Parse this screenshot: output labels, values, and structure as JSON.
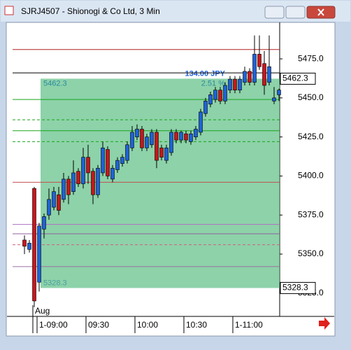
{
  "chart_data": {
    "type": "candlestick",
    "window_title": "SJRJ4507 - Shionogi & Co Ltd, 3 Min",
    "categories": [
      null,
      null,
      null,
      "1-09:00",
      null,
      null,
      null,
      null,
      null,
      null,
      null,
      null,
      null,
      "09:30",
      null,
      null,
      null,
      null,
      null,
      null,
      null,
      null,
      null,
      "10:00",
      null,
      null,
      null,
      null,
      null,
      null,
      null,
      null,
      null,
      "10:30",
      null,
      null,
      null,
      null,
      null,
      null,
      null,
      null,
      null,
      "1-11:00",
      null,
      null,
      null,
      null,
      null,
      null,
      null,
      null,
      null
    ],
    "x_sublabel": "Aug",
    "open": [
      5359,
      5353,
      5392,
      5332,
      5366,
      5375,
      5380,
      5388,
      5385,
      5398,
      5390,
      5403,
      5395,
      5412,
      5403,
      5388,
      5402,
      5417,
      5398,
      5404,
      5408,
      5410,
      5418,
      5425,
      5430,
      5418,
      5420,
      5428,
      5418,
      5410,
      5415,
      5428,
      5423,
      5427,
      5422,
      5425,
      5428,
      5440,
      5446,
      5449,
      5455,
      5448,
      5455,
      5462,
      5455,
      5460,
      5467,
      5460,
      5478,
      5472,
      5460,
      5448,
      5452
    ],
    "high": [
      5362,
      5359,
      5393,
      5370,
      5376,
      5392,
      5393,
      5393,
      5402,
      5400,
      5410,
      5405,
      5418,
      5420,
      5405,
      5407,
      5422,
      5419,
      5407,
      5412,
      5414,
      5422,
      5432,
      5433,
      5432,
      5427,
      5430,
      5430,
      5420,
      5420,
      5430,
      5430,
      5429,
      5429,
      5429,
      5432,
      5443,
      5450,
      5454,
      5457,
      5457,
      5460,
      5464,
      5464,
      5464,
      5470,
      5469,
      5490,
      5490,
      5480,
      5490,
      5457,
      5456
    ],
    "low": [
      5350,
      5351,
      5316,
      5326,
      5360,
      5372,
      5378,
      5375,
      5383,
      5382,
      5388,
      5393,
      5392,
      5395,
      5382,
      5386,
      5400,
      5398,
      5396,
      5402,
      5406,
      5408,
      5416,
      5423,
      5416,
      5416,
      5418,
      5405,
      5410,
      5408,
      5413,
      5421,
      5421,
      5421,
      5420,
      5423,
      5426,
      5438,
      5444,
      5447,
      5446,
      5446,
      5453,
      5453,
      5453,
      5458,
      5458,
      5458,
      5468,
      5452,
      5458,
      5446,
      5448
    ],
    "close": [
      5355,
      5357,
      5320,
      5368,
      5374,
      5385,
      5390,
      5378,
      5398,
      5388,
      5402,
      5395,
      5412,
      5402,
      5388,
      5405,
      5418,
      5400,
      5405,
      5410,
      5412,
      5420,
      5428,
      5430,
      5418,
      5425,
      5428,
      5410,
      5412,
      5418,
      5428,
      5423,
      5428,
      5423,
      5427,
      5430,
      5441,
      5448,
      5452,
      5455,
      5448,
      5458,
      5462,
      5455,
      5462,
      5467,
      5460,
      5478,
      5470,
      5458,
      5470,
      5450,
      5455
    ],
    "up_color": "#1f62d8",
    "down_color": "#c8161c",
    "ylim": [
      5311,
      5497
    ],
    "yticks": [
      {
        "value": 5325,
        "label": "5325.0"
      },
      {
        "value": 5350,
        "label": "5350.0"
      },
      {
        "value": 5375,
        "label": "5375.0"
      },
      {
        "value": 5400,
        "label": "5400.0"
      },
      {
        "value": 5425,
        "label": "5425.0"
      },
      {
        "value": 5450,
        "label": "5450.0"
      },
      {
        "value": 5475,
        "label": "5475.0"
      }
    ],
    "levels": [
      {
        "value": 5481,
        "color": "#b22222",
        "dashed": false
      },
      {
        "value": 5466,
        "color": "#000000",
        "dashed": false
      },
      {
        "value": 5449,
        "color": "#1aa51a",
        "dashed": false
      },
      {
        "value": 5436,
        "color": "#1aa51a",
        "dashed": true
      },
      {
        "value": 5429,
        "color": "#1aa51a",
        "dashed": false
      },
      {
        "value": 5422,
        "color": "#1aa51a",
        "dashed": true
      },
      {
        "value": 5396,
        "color": "#c05050",
        "dashed": false
      },
      {
        "value": 5369,
        "color": "#b070c0",
        "dashed": false
      },
      {
        "value": 5363,
        "color": "#9060a0",
        "dashed": false
      },
      {
        "value": 5356,
        "color": "#d06080",
        "dashed": true
      },
      {
        "value": 5342,
        "color": "#9a70a0",
        "dashed": false
      }
    ],
    "measure": {
      "high": 5462.3,
      "low": 5328.3,
      "change": {
        "value": 134,
        "label": "134.00 JPY"
      },
      "percent": {
        "value": 2.51,
        "label": "2.51 %"
      },
      "color": "#5cbf85"
    },
    "last_price": 5462.3,
    "low_price": 5328.3
  }
}
